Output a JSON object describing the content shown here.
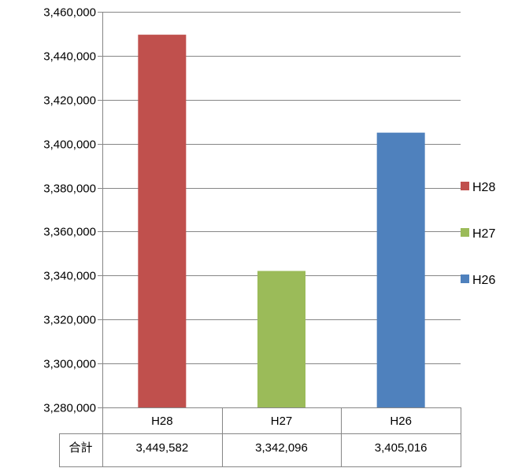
{
  "chart_data": {
    "type": "bar",
    "title": "",
    "xlabel": "",
    "ylabel": "",
    "categories": [
      "H28",
      "H27",
      "H26"
    ],
    "values": [
      3449582,
      3342096,
      3405016
    ],
    "colors": [
      "#c0504d",
      "#9bbb59",
      "#4f81bd"
    ],
    "ylim": [
      3280000,
      3460000
    ],
    "y_ticks": [
      3280000,
      3300000,
      3320000,
      3340000,
      3360000,
      3380000,
      3400000,
      3420000,
      3440000,
      3460000
    ],
    "y_tick_labels": [
      "3,280,000",
      "3,300,000",
      "3,320,000",
      "3,340,000",
      "3,360,000",
      "3,380,000",
      "3,400,000",
      "3,420,000",
      "3,440,000",
      "3,460,000"
    ],
    "grid": true,
    "legend": {
      "position": "right",
      "entries": [
        {
          "name": "H28",
          "color": "#c0504d"
        },
        {
          "name": "H27",
          "color": "#9bbb59"
        },
        {
          "name": "H26",
          "color": "#4f81bd"
        }
      ]
    },
    "data_table": {
      "row_label": "合計",
      "cells": [
        "3,449,582",
        "3,342,096",
        "3,405,016"
      ]
    }
  }
}
